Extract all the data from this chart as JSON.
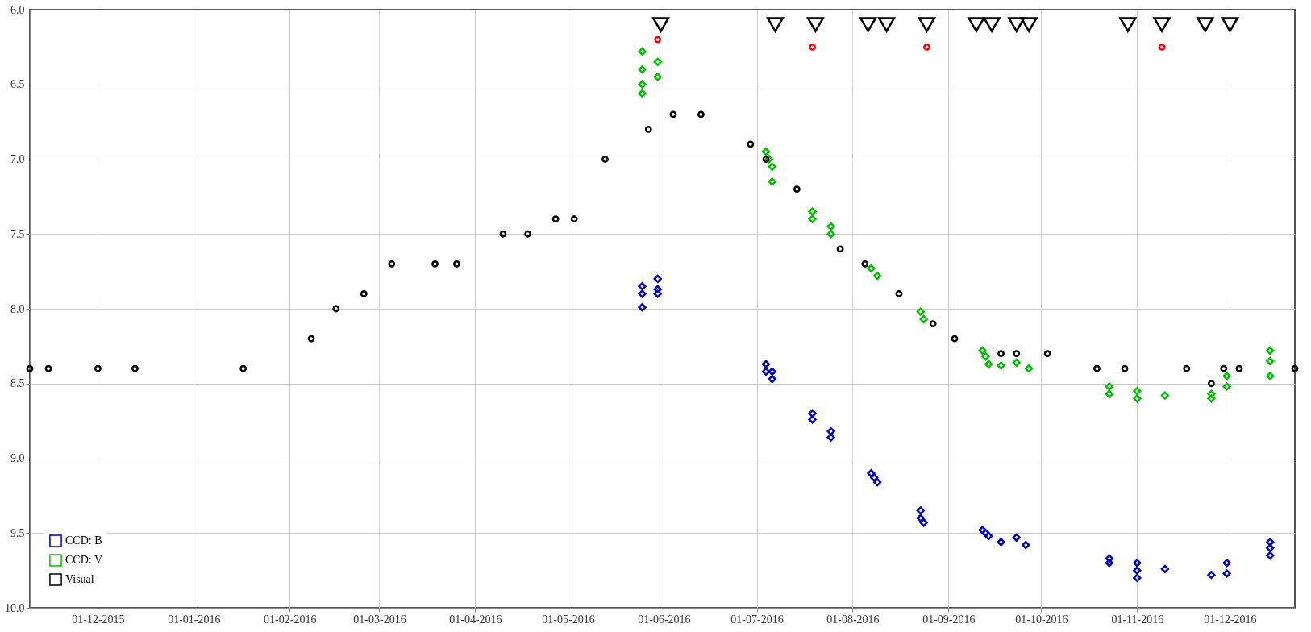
{
  "chart_data": {
    "type": "scatter",
    "xlim": [
      "2015-11-09",
      "2016-12-22"
    ],
    "ylim": [
      10,
      6
    ],
    "xticks": [
      {
        "value": "2015-12-01",
        "label": "01-12-2015"
      },
      {
        "value": "2016-01-01",
        "label": "01-01-2016"
      },
      {
        "value": "2016-02-01",
        "label": "01-02-2016"
      },
      {
        "value": "2016-03-01",
        "label": "01-03-2016"
      },
      {
        "value": "2016-04-01",
        "label": "01-04-2016"
      },
      {
        "value": "2016-05-01",
        "label": "01-05-2016"
      },
      {
        "value": "2016-06-01",
        "label": "01-06-2016"
      },
      {
        "value": "2016-07-01",
        "label": "01-07-2016"
      },
      {
        "value": "2016-08-01",
        "label": "01-08-2016"
      },
      {
        "value": "2016-09-01",
        "label": "01-09-2016"
      },
      {
        "value": "2016-10-01",
        "label": "01-10-2016"
      },
      {
        "value": "2016-11-01",
        "label": "01-11-2016"
      },
      {
        "value": "2016-12-01",
        "label": "01-12-2016"
      }
    ],
    "yticks": [
      {
        "value": 6,
        "label": "6.0"
      },
      {
        "value": 6.5,
        "label": "6.5"
      },
      {
        "value": 7,
        "label": "7.0"
      },
      {
        "value": 7.5,
        "label": "7.5"
      },
      {
        "value": 8,
        "label": "8.0"
      },
      {
        "value": 8.5,
        "label": "8.5"
      },
      {
        "value": 9,
        "label": "9.0"
      },
      {
        "value": 9.5,
        "label": "9.5"
      },
      {
        "value": 10,
        "label": "10.0"
      }
    ],
    "grid": true,
    "legend": "bottom left",
    "series": [
      {
        "name": "CCD: B",
        "color": "#0000c0",
        "marker": "diamond",
        "x": [
          "2016-05-25",
          "2016-05-25",
          "2016-05-25",
          "2016-05-30",
          "2016-05-30",
          "2016-05-30",
          "2016-07-04",
          "2016-07-04",
          "2016-07-06",
          "2016-07-06",
          "2016-07-19",
          "2016-07-19",
          "2016-07-25",
          "2016-07-25",
          "2016-08-07",
          "2016-08-08",
          "2016-08-09",
          "2016-08-23",
          "2016-08-23",
          "2016-08-24",
          "2016-09-12",
          "2016-09-13",
          "2016-09-14",
          "2016-09-18",
          "2016-09-23",
          "2016-09-26",
          "2016-10-23",
          "2016-10-23",
          "2016-11-01",
          "2016-11-01",
          "2016-11-01",
          "2016-11-10",
          "2016-11-25",
          "2016-11-30",
          "2016-11-30",
          "2016-12-14",
          "2016-12-14",
          "2016-12-14"
        ],
        "values": [
          7.85,
          7.9,
          7.99,
          7.8,
          7.87,
          7.9,
          8.37,
          8.42,
          8.42,
          8.47,
          8.7,
          8.74,
          8.82,
          8.86,
          9.1,
          9.13,
          9.16,
          9.35,
          9.4,
          9.43,
          9.48,
          9.5,
          9.52,
          9.56,
          9.53,
          9.58,
          9.67,
          9.7,
          9.7,
          9.75,
          9.8,
          9.74,
          9.78,
          9.7,
          9.77,
          9.56,
          9.6,
          9.65
        ]
      },
      {
        "name": "CCD: V",
        "color": "#00c000",
        "marker": "diamond",
        "x": [
          "2016-05-25",
          "2016-05-25",
          "2016-05-25",
          "2016-05-25",
          "2016-05-30",
          "2016-05-30",
          "2016-07-04",
          "2016-07-05",
          "2016-07-06",
          "2016-07-06",
          "2016-07-19",
          "2016-07-19",
          "2016-07-25",
          "2016-07-25",
          "2016-08-07",
          "2016-08-09",
          "2016-08-23",
          "2016-08-24",
          "2016-09-12",
          "2016-09-13",
          "2016-09-14",
          "2016-09-18",
          "2016-09-23",
          "2016-09-27",
          "2016-10-23",
          "2016-10-23",
          "2016-11-01",
          "2016-11-01",
          "2016-11-10",
          "2016-11-25",
          "2016-11-25",
          "2016-11-30",
          "2016-11-30",
          "2016-12-14",
          "2016-12-14",
          "2016-12-14"
        ],
        "values": [
          6.28,
          6.4,
          6.5,
          6.56,
          6.35,
          6.45,
          6.95,
          7.0,
          7.05,
          7.15,
          7.35,
          7.4,
          7.45,
          7.5,
          7.73,
          7.78,
          8.02,
          8.07,
          8.28,
          8.32,
          8.37,
          8.38,
          8.36,
          8.4,
          8.52,
          8.57,
          8.55,
          8.6,
          8.58,
          8.57,
          8.6,
          8.45,
          8.52,
          8.28,
          8.35,
          8.45
        ]
      },
      {
        "name": "Visual",
        "color": "#000000",
        "marker": "circle",
        "x": [
          "2015-11-09",
          "2015-11-15",
          "2015-12-01",
          "2015-12-13",
          "2016-01-17",
          "2016-02-08",
          "2016-02-16",
          "2016-02-25",
          "2016-03-05",
          "2016-03-19",
          "2016-03-26",
          "2016-04-10",
          "2016-04-18",
          "2016-04-27",
          "2016-05-03",
          "2016-05-13",
          "2016-05-27",
          "2016-06-04",
          "2016-06-13",
          "2016-06-29",
          "2016-07-04",
          "2016-07-14",
          "2016-07-28",
          "2016-08-05",
          "2016-08-16",
          "2016-08-27",
          "2016-09-03",
          "2016-09-18",
          "2016-09-23",
          "2016-10-03",
          "2016-10-19",
          "2016-10-28",
          "2016-11-17",
          "2016-11-25",
          "2016-11-29",
          "2016-12-04",
          "2016-12-22"
        ],
        "values": [
          8.4,
          8.4,
          8.4,
          8.4,
          8.4,
          8.2,
          8.0,
          7.9,
          7.7,
          7.7,
          7.7,
          7.5,
          7.5,
          7.4,
          7.4,
          7.0,
          6.8,
          6.7,
          6.7,
          6.9,
          7.0,
          7.2,
          7.6,
          7.7,
          7.9,
          8.1,
          8.2,
          8.3,
          8.3,
          8.3,
          8.4,
          8.4,
          8.4,
          8.5,
          8.4,
          8.4,
          8.4
        ]
      },
      {
        "color": "#ff0000",
        "marker": "circle",
        "x": [
          "2016-05-30",
          "2016-07-19",
          "2016-08-25",
          "2016-11-09"
        ],
        "values": [
          6.2,
          6.25,
          6.25,
          6.25
        ]
      },
      {
        "color": "#000000",
        "marker": "triangle",
        "x": [
          "2016-05-31",
          "2016-07-07",
          "2016-07-20",
          "2016-08-06",
          "2016-08-12",
          "2016-08-25",
          "2016-09-10",
          "2016-09-15",
          "2016-09-23",
          "2016-09-27",
          "2016-10-29",
          "2016-11-09",
          "2016-11-23",
          "2016-12-01"
        ],
        "values": [
          6.1,
          6.1,
          6.1,
          6.1,
          6.1,
          6.1,
          6.1,
          6.1,
          6.1,
          6.1,
          6.1,
          6.1,
          6.1,
          6.1
        ]
      }
    ]
  }
}
